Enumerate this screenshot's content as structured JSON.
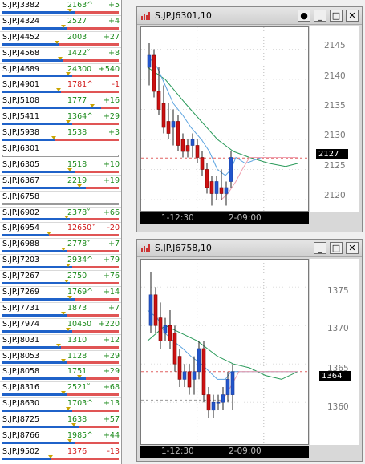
{
  "watchlist": [
    {
      "symbol": "S.JP.J3382",
      "price": "2163^",
      "change": "+5",
      "dir": "up",
      "blue": 0.62
    },
    {
      "symbol": "S.JP.J4324",
      "price": "2527",
      "change": "+4",
      "dir": "up",
      "blue": 0.55
    },
    {
      "symbol": "S.JP.J4452",
      "price": "2003",
      "change": "+27",
      "dir": "up",
      "blue": 0.48
    },
    {
      "symbol": "S.JP.J4568",
      "price": "1422˅",
      "change": "+8",
      "dir": "up",
      "blue": 0.52
    },
    {
      "symbol": "S.JP.J4689",
      "price": "24300",
      "change": "+540",
      "dir": "up",
      "blue": 0.6
    },
    {
      "symbol": "S.JP.J4901",
      "price": "1781^",
      "change": "-1",
      "dir": "dn",
      "blue": 0.5
    },
    {
      "symbol": "S.JP.J5108",
      "price": "1777",
      "change": "+16",
      "dir": "up",
      "blue": 0.85
    },
    {
      "symbol": "S.JP.J5411",
      "price": "1364^",
      "change": "+29",
      "dir": "up",
      "blue": 0.6
    },
    {
      "symbol": "S.JP.J5938",
      "price": "1538",
      "change": "+3",
      "dir": "up",
      "blue": 0.45
    },
    {
      "symbol": "S.JP.J6301",
      "price": "",
      "change": "",
      "dir": "up",
      "blue": -1
    },
    {
      "symbol": "S.JP.J6305",
      "price": "1518",
      "change": "+10",
      "dir": "up",
      "blue": 0.62
    },
    {
      "symbol": "S.JP.J6367",
      "price": "2219",
      "change": "+19",
      "dir": "up",
      "blue": 0.72
    },
    {
      "symbol": "S.JP.J6758",
      "price": "",
      "change": "",
      "dir": "up",
      "blue": -1
    },
    {
      "symbol": "S.JP.J6902",
      "price": "2378˅",
      "change": "+66",
      "dir": "up",
      "blue": 0.58
    },
    {
      "symbol": "S.JP.J6954",
      "price": "12650˅",
      "change": "-20",
      "dir": "dn",
      "blue": 0.4
    },
    {
      "symbol": "S.JP.J6988",
      "price": "2778˅",
      "change": "+7",
      "dir": "up",
      "blue": 0.55
    },
    {
      "symbol": "S.JP.J7203",
      "price": "2934^",
      "change": "+79",
      "dir": "up",
      "blue": 0.6
    },
    {
      "symbol": "S.JP.J7267",
      "price": "2750",
      "change": "+76",
      "dir": "up",
      "blue": 0.58
    },
    {
      "symbol": "S.JP.J7269",
      "price": "1769^",
      "change": "+14",
      "dir": "up",
      "blue": 0.62
    },
    {
      "symbol": "S.JP.J7731",
      "price": "1873",
      "change": "+7",
      "dir": "up",
      "blue": 0.55
    },
    {
      "symbol": "S.JP.J7974",
      "price": "10450",
      "change": "+220",
      "dir": "up",
      "blue": 0.6
    },
    {
      "symbol": "S.JP.J8031",
      "price": "1310",
      "change": "+12",
      "dir": "up",
      "blue": 0.5
    },
    {
      "symbol": "S.JP.J8053",
      "price": "1128",
      "change": "+29",
      "dir": "up",
      "blue": 0.55
    },
    {
      "symbol": "S.JP.J8058",
      "price": "1751",
      "change": "+29",
      "dir": "up",
      "blue": 0.72
    },
    {
      "symbol": "S.JP.J8316",
      "price": "2521˅",
      "change": "+68",
      "dir": "up",
      "blue": 0.55
    },
    {
      "symbol": "S.JP.J8630",
      "price": "1703^",
      "change": "+13",
      "dir": "up",
      "blue": 0.6
    },
    {
      "symbol": "S.JP.J8725",
      "price": "1638",
      "change": "+57",
      "dir": "up",
      "blue": 0.66
    },
    {
      "symbol": "S.JP.J8766",
      "price": "1985^",
      "change": "+44",
      "dir": "up",
      "blue": 0.62
    },
    {
      "symbol": "S.JP.J9502",
      "price": "1376",
      "change": "-13",
      "dir": "dn",
      "blue": 0.42
    }
  ],
  "charts": [
    {
      "title": "S.JP.J6301,10",
      "yticks": [
        "2145",
        "2140",
        "2135",
        "2130",
        "2125",
        "2120"
      ],
      "current_price": "2127",
      "time_labels": [
        "1-12:30",
        "2-09:00"
      ],
      "buttons": [
        "●",
        "_",
        "□",
        "✕"
      ]
    },
    {
      "title": "S.JP.J6758,10",
      "yticks": [
        "1375",
        "1370",
        "1365",
        "1360"
      ],
      "current_price": "1364",
      "time_labels": [
        "1-12:30",
        "2-09:00"
      ],
      "buttons": [
        "_",
        "□",
        "✕"
      ]
    }
  ],
  "colors": {
    "up": "#1a8a1a",
    "down": "#d11a1a",
    "bull": "#2255cc",
    "bear": "#cc1111",
    "ma_fast": "#5ba3e0",
    "ma_slow": "#2a9a5a",
    "ma_pink": "#f0a0b0"
  }
}
